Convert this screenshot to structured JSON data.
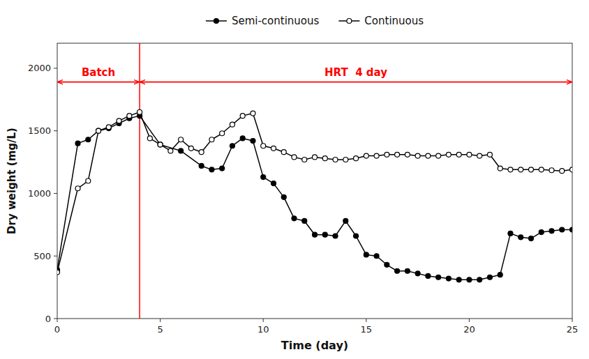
{
  "chart_data": {
    "type": "line",
    "x_label": "Time (day)",
    "y_label": "Dry weight (mg/L)",
    "xlim": [
      0,
      25
    ],
    "ylim": [
      0,
      2200
    ],
    "xticks": [
      0,
      5,
      10,
      15,
      20,
      25
    ],
    "yticks": [
      0,
      500,
      1000,
      1500,
      2000
    ],
    "grid": false,
    "legend": "top",
    "series": [
      {
        "name": "Semi-continuous",
        "color": "black",
        "marker": "circle",
        "x": [
          0,
          1,
          1.5,
          2,
          2.5,
          3,
          3.5,
          4,
          5,
          6,
          7,
          7.5,
          8,
          8.5,
          9,
          9.5,
          10,
          10.5,
          11,
          11.5,
          12,
          12.5,
          13,
          13.5,
          14,
          14.5,
          15,
          15.5,
          16,
          16.5,
          17,
          17.5,
          18,
          18.5,
          19,
          19.5,
          20,
          20.5,
          21,
          21.5,
          22,
          22.5,
          23,
          23.5,
          24,
          24.5,
          25
        ],
        "values": [
          390,
          1400,
          1430,
          1500,
          1520,
          1560,
          1600,
          1620,
          1390,
          1340,
          1220,
          1190,
          1200,
          1380,
          1440,
          1420,
          1130,
          1080,
          970,
          800,
          780,
          670,
          670,
          660,
          780,
          660,
          510,
          500,
          430,
          380,
          380,
          360,
          340,
          330,
          320,
          310,
          310,
          310,
          330,
          350,
          680,
          650,
          640,
          690,
          700,
          710,
          710
        ]
      },
      {
        "name": "Continuous",
        "color": "black",
        "marker": "circle-open",
        "x": [
          0,
          1,
          1.5,
          2,
          2.5,
          3,
          3.5,
          4,
          4.5,
          5,
          5.5,
          6,
          6.5,
          7,
          7.5,
          8,
          8.5,
          9,
          9.5,
          10,
          10.5,
          11,
          11.5,
          12,
          12.5,
          13,
          13.5,
          14,
          14.5,
          15,
          15.5,
          16,
          16.5,
          17,
          17.5,
          18,
          18.5,
          19,
          19.5,
          20,
          20.5,
          21,
          21.5,
          22,
          22.5,
          23,
          23.5,
          24,
          24.5,
          25
        ],
        "values": [
          370,
          1040,
          1100,
          1500,
          1530,
          1580,
          1620,
          1650,
          1440,
          1390,
          1340,
          1430,
          1360,
          1330,
          1430,
          1480,
          1550,
          1620,
          1640,
          1380,
          1360,
          1330,
          1290,
          1270,
          1290,
          1280,
          1270,
          1270,
          1280,
          1300,
          1300,
          1310,
          1310,
          1310,
          1300,
          1300,
          1300,
          1310,
          1310,
          1310,
          1300,
          1310,
          1200,
          1190,
          1190,
          1190,
          1190,
          1185,
          1180,
          1190
        ]
      }
    ],
    "annotations": [
      {
        "type": "vline",
        "x": 4,
        "color": "red"
      },
      {
        "type": "arrow",
        "x": [
          0,
          4
        ],
        "y": 1890,
        "text": "Batch",
        "color": "red"
      },
      {
        "type": "arrow",
        "x": [
          4,
          25
        ],
        "y": 1890,
        "text": "HRT  4 day",
        "color": "red"
      }
    ]
  }
}
